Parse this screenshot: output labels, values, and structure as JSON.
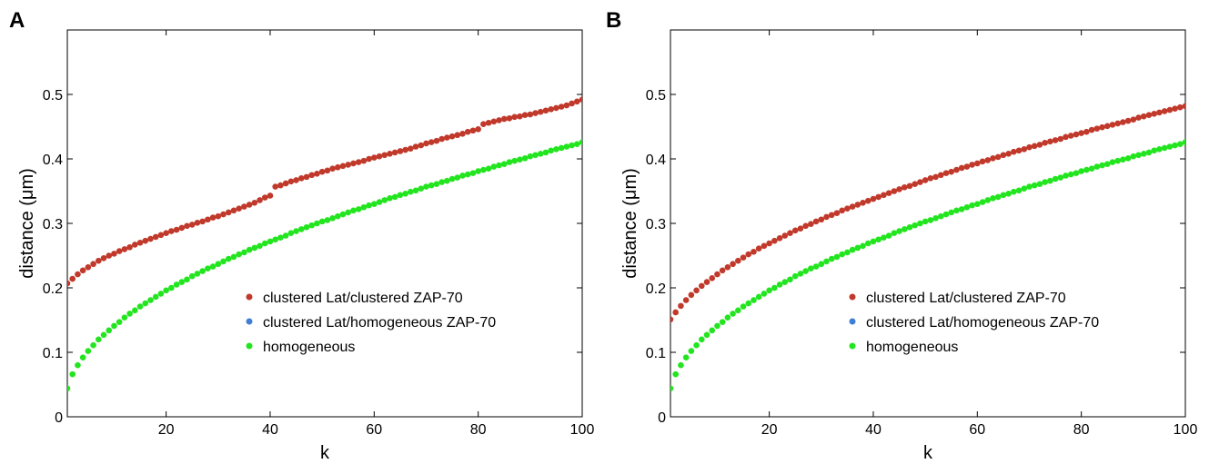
{
  "chart_data": [
    {
      "type": "scatter",
      "panel_label": "A",
      "xlabel": "k",
      "ylabel": "distance (μm)",
      "xlim": [
        1,
        100
      ],
      "ylim": [
        0,
        0.6
      ],
      "xticks": [
        "20",
        "40",
        "60",
        "80",
        "100"
      ],
      "yticks": [
        "0",
        "0.1",
        "0.2",
        "0.3",
        "0.4",
        "0.5"
      ],
      "legend_position": "bottom-right",
      "series": [
        {
          "name": "clustered Lat/clustered ZAP-70",
          "color": "#c0392b",
          "x": [
            1,
            2,
            3,
            4,
            5,
            6,
            7,
            8,
            9,
            10,
            11,
            12,
            13,
            14,
            15,
            16,
            17,
            18,
            19,
            20,
            21,
            22,
            23,
            24,
            25,
            26,
            27,
            28,
            29,
            30,
            31,
            32,
            33,
            34,
            35,
            36,
            37,
            38,
            39,
            40,
            41,
            42,
            43,
            44,
            45,
            46,
            47,
            48,
            49,
            50,
            51,
            52,
            53,
            54,
            55,
            56,
            57,
            58,
            59,
            60,
            61,
            62,
            63,
            64,
            65,
            66,
            67,
            68,
            69,
            70,
            71,
            72,
            73,
            74,
            75,
            76,
            77,
            78,
            79,
            80,
            81,
            82,
            83,
            84,
            85,
            86,
            87,
            88,
            89,
            90,
            91,
            92,
            93,
            94,
            95,
            96,
            97,
            98,
            99,
            100
          ],
          "y": [
            0.207,
            0.214,
            0.221,
            0.227,
            0.232,
            0.237,
            0.242,
            0.246,
            0.25,
            0.253,
            0.257,
            0.26,
            0.263,
            0.267,
            0.27,
            0.273,
            0.276,
            0.279,
            0.282,
            0.285,
            0.288,
            0.29,
            0.293,
            0.296,
            0.298,
            0.301,
            0.303,
            0.306,
            0.309,
            0.311,
            0.314,
            0.317,
            0.32,
            0.323,
            0.326,
            0.329,
            0.332,
            0.336,
            0.34,
            0.343,
            0.357,
            0.359,
            0.362,
            0.365,
            0.367,
            0.37,
            0.372,
            0.375,
            0.377,
            0.38,
            0.382,
            0.385,
            0.387,
            0.389,
            0.391,
            0.393,
            0.395,
            0.397,
            0.4,
            0.402,
            0.404,
            0.406,
            0.408,
            0.41,
            0.412,
            0.414,
            0.416,
            0.419,
            0.421,
            0.424,
            0.426,
            0.428,
            0.431,
            0.433,
            0.435,
            0.437,
            0.439,
            0.442,
            0.444,
            0.446,
            0.454,
            0.456,
            0.458,
            0.46,
            0.462,
            0.463,
            0.465,
            0.466,
            0.468,
            0.469,
            0.471,
            0.473,
            0.475,
            0.477,
            0.479,
            0.481,
            0.483,
            0.486,
            0.489,
            0.492
          ]
        },
        {
          "name": "clustered Lat/homogeneous ZAP-70",
          "color": "#3f7fd6",
          "x": [],
          "y": []
        },
        {
          "name": "homogeneous",
          "color": "#22e51f",
          "x": [
            1,
            2,
            3,
            4,
            5,
            6,
            7,
            8,
            9,
            10,
            11,
            12,
            13,
            14,
            15,
            16,
            17,
            18,
            19,
            20,
            21,
            22,
            23,
            24,
            25,
            26,
            27,
            28,
            29,
            30,
            31,
            32,
            33,
            34,
            35,
            36,
            37,
            38,
            39,
            40,
            41,
            42,
            43,
            44,
            45,
            46,
            47,
            48,
            49,
            50,
            51,
            52,
            53,
            54,
            55,
            56,
            57,
            58,
            59,
            60,
            61,
            62,
            63,
            64,
            65,
            66,
            67,
            68,
            69,
            70,
            71,
            72,
            73,
            74,
            75,
            76,
            77,
            78,
            79,
            80,
            81,
            82,
            83,
            84,
            85,
            86,
            87,
            88,
            89,
            90,
            91,
            92,
            93,
            94,
            95,
            96,
            97,
            98,
            99,
            100
          ],
          "y": [
            0.044,
            0.066,
            0.08,
            0.092,
            0.102,
            0.111,
            0.12,
            0.127,
            0.134,
            0.141,
            0.147,
            0.154,
            0.16,
            0.165,
            0.171,
            0.176,
            0.181,
            0.186,
            0.191,
            0.196,
            0.2,
            0.205,
            0.209,
            0.213,
            0.218,
            0.222,
            0.226,
            0.23,
            0.233,
            0.237,
            0.241,
            0.245,
            0.248,
            0.252,
            0.255,
            0.259,
            0.262,
            0.265,
            0.269,
            0.272,
            0.275,
            0.278,
            0.281,
            0.285,
            0.288,
            0.291,
            0.294,
            0.297,
            0.3,
            0.303,
            0.305,
            0.308,
            0.311,
            0.314,
            0.317,
            0.32,
            0.322,
            0.325,
            0.328,
            0.33,
            0.333,
            0.336,
            0.339,
            0.341,
            0.344,
            0.346,
            0.349,
            0.351,
            0.354,
            0.357,
            0.359,
            0.361,
            0.364,
            0.366,
            0.369,
            0.371,
            0.374,
            0.376,
            0.378,
            0.381,
            0.383,
            0.385,
            0.388,
            0.39,
            0.392,
            0.395,
            0.397,
            0.399,
            0.401,
            0.404,
            0.406,
            0.408,
            0.41,
            0.413,
            0.415,
            0.417,
            0.419,
            0.421,
            0.423,
            0.426
          ]
        }
      ]
    },
    {
      "type": "scatter",
      "panel_label": "B",
      "xlabel": "k",
      "ylabel": "distance (μm)",
      "xlim": [
        1,
        100
      ],
      "ylim": [
        0,
        0.6
      ],
      "xticks": [
        "20",
        "40",
        "60",
        "80",
        "100"
      ],
      "yticks": [
        "0",
        "0.1",
        "0.2",
        "0.3",
        "0.4",
        "0.5"
      ],
      "legend_position": "bottom-right",
      "series": [
        {
          "name": "clustered Lat/clustered ZAP-70",
          "color": "#c0392b",
          "x": [
            1,
            2,
            3,
            4,
            5,
            6,
            7,
            8,
            9,
            10,
            11,
            12,
            13,
            14,
            15,
            16,
            17,
            18,
            19,
            20,
            21,
            22,
            23,
            24,
            25,
            26,
            27,
            28,
            29,
            30,
            31,
            32,
            33,
            34,
            35,
            36,
            37,
            38,
            39,
            40,
            41,
            42,
            43,
            44,
            45,
            46,
            47,
            48,
            49,
            50,
            51,
            52,
            53,
            54,
            55,
            56,
            57,
            58,
            59,
            60,
            61,
            62,
            63,
            64,
            65,
            66,
            67,
            68,
            69,
            70,
            71,
            72,
            73,
            74,
            75,
            76,
            77,
            78,
            79,
            80,
            81,
            82,
            83,
            84,
            85,
            86,
            87,
            88,
            89,
            90,
            91,
            92,
            93,
            94,
            95,
            96,
            97,
            98,
            99,
            100
          ],
          "y": [
            0.151,
            0.162,
            0.172,
            0.181,
            0.189,
            0.196,
            0.203,
            0.209,
            0.215,
            0.221,
            0.227,
            0.232,
            0.237,
            0.242,
            0.247,
            0.252,
            0.256,
            0.261,
            0.265,
            0.269,
            0.273,
            0.277,
            0.281,
            0.285,
            0.289,
            0.292,
            0.296,
            0.299,
            0.303,
            0.306,
            0.31,
            0.313,
            0.316,
            0.32,
            0.323,
            0.326,
            0.329,
            0.332,
            0.335,
            0.338,
            0.341,
            0.344,
            0.347,
            0.35,
            0.353,
            0.356,
            0.358,
            0.361,
            0.364,
            0.367,
            0.37,
            0.372,
            0.375,
            0.378,
            0.38,
            0.383,
            0.386,
            0.388,
            0.391,
            0.393,
            0.396,
            0.398,
            0.401,
            0.403,
            0.406,
            0.408,
            0.411,
            0.413,
            0.415,
            0.418,
            0.42,
            0.422,
            0.425,
            0.427,
            0.429,
            0.431,
            0.434,
            0.436,
            0.438,
            0.44,
            0.442,
            0.445,
            0.447,
            0.449,
            0.451,
            0.453,
            0.455,
            0.457,
            0.459,
            0.461,
            0.464,
            0.466,
            0.468,
            0.47,
            0.472,
            0.474,
            0.476,
            0.478,
            0.48,
            0.482
          ]
        },
        {
          "name": "clustered Lat/homogeneous ZAP-70",
          "color": "#3f7fd6",
          "x": [],
          "y": []
        },
        {
          "name": "homogeneous",
          "color": "#22e51f",
          "x": [
            1,
            2,
            3,
            4,
            5,
            6,
            7,
            8,
            9,
            10,
            11,
            12,
            13,
            14,
            15,
            16,
            17,
            18,
            19,
            20,
            21,
            22,
            23,
            24,
            25,
            26,
            27,
            28,
            29,
            30,
            31,
            32,
            33,
            34,
            35,
            36,
            37,
            38,
            39,
            40,
            41,
            42,
            43,
            44,
            45,
            46,
            47,
            48,
            49,
            50,
            51,
            52,
            53,
            54,
            55,
            56,
            57,
            58,
            59,
            60,
            61,
            62,
            63,
            64,
            65,
            66,
            67,
            68,
            69,
            70,
            71,
            72,
            73,
            74,
            75,
            76,
            77,
            78,
            79,
            80,
            81,
            82,
            83,
            84,
            85,
            86,
            87,
            88,
            89,
            90,
            91,
            92,
            93,
            94,
            95,
            96,
            97,
            98,
            99,
            100
          ],
          "y": [
            0.044,
            0.066,
            0.08,
            0.092,
            0.102,
            0.111,
            0.12,
            0.127,
            0.134,
            0.141,
            0.147,
            0.154,
            0.16,
            0.165,
            0.171,
            0.176,
            0.181,
            0.186,
            0.191,
            0.196,
            0.2,
            0.205,
            0.209,
            0.213,
            0.218,
            0.222,
            0.226,
            0.23,
            0.233,
            0.237,
            0.241,
            0.245,
            0.248,
            0.252,
            0.255,
            0.259,
            0.262,
            0.265,
            0.269,
            0.272,
            0.275,
            0.278,
            0.281,
            0.285,
            0.288,
            0.291,
            0.294,
            0.297,
            0.3,
            0.303,
            0.305,
            0.308,
            0.311,
            0.314,
            0.317,
            0.32,
            0.322,
            0.325,
            0.328,
            0.33,
            0.333,
            0.336,
            0.339,
            0.341,
            0.344,
            0.346,
            0.349,
            0.351,
            0.354,
            0.357,
            0.359,
            0.361,
            0.364,
            0.366,
            0.369,
            0.371,
            0.374,
            0.376,
            0.378,
            0.381,
            0.383,
            0.385,
            0.388,
            0.39,
            0.392,
            0.395,
            0.397,
            0.399,
            0.401,
            0.404,
            0.406,
            0.408,
            0.41,
            0.413,
            0.415,
            0.417,
            0.419,
            0.421,
            0.423,
            0.426
          ]
        }
      ]
    }
  ]
}
